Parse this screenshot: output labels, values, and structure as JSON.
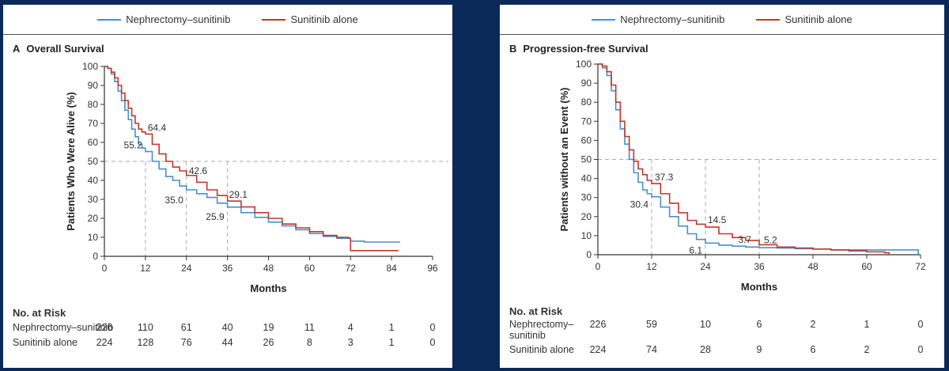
{
  "legend": [
    {
      "name": "Nephrectomy–sunitinib",
      "color": "#4a90c8"
    },
    {
      "name": "Sunitinib alone",
      "color": "#c0392b"
    }
  ],
  "chart_data": [
    {
      "type": "line",
      "letter": "A",
      "title": "Overall Survival",
      "xlabel": "Months",
      "ylabel": "Patients Who Were Alive (%)",
      "xlim": [
        0,
        96
      ],
      "ylim": [
        0,
        100
      ],
      "xticks": [
        "0",
        "12",
        "24",
        "36",
        "48",
        "60",
        "72",
        "84",
        "96"
      ],
      "yticks": [
        "0",
        "10",
        "20",
        "30",
        "40",
        "50",
        "60",
        "70",
        "80",
        "90",
        "100"
      ],
      "series": [
        {
          "name": "Nephrectomy–sunitinib",
          "color": "#4a90c8",
          "x": [
            0,
            1,
            2,
            3,
            4,
            5,
            6,
            7,
            8,
            9,
            10,
            11,
            12,
            14,
            16,
            18,
            20,
            22,
            24,
            27,
            30,
            33,
            36,
            40,
            44,
            48,
            52,
            56,
            60,
            64,
            68,
            72,
            76,
            80,
            84,
            86.5
          ],
          "y": [
            100,
            99,
            96,
            92,
            87,
            82,
            77,
            72,
            67,
            63,
            59,
            57,
            55.2,
            50,
            46,
            42,
            40,
            37,
            35,
            33,
            31,
            28,
            25.9,
            23,
            20.5,
            18,
            16,
            14,
            12,
            10.5,
            9.5,
            8,
            7.5,
            7.5,
            7.5,
            7.5
          ]
        },
        {
          "name": "Sunitinib alone",
          "color": "#c0392b",
          "x": [
            0,
            1,
            2,
            3,
            4,
            5,
            6,
            7,
            8,
            9,
            10,
            11,
            12,
            14,
            16,
            18,
            20,
            22,
            24,
            27,
            30,
            33,
            36,
            40,
            44,
            48,
            52,
            56,
            60,
            64,
            68,
            71.5,
            72,
            76,
            80,
            84,
            86
          ],
          "y": [
            100,
            99,
            97,
            94,
            90,
            86,
            82,
            78,
            74,
            70,
            67,
            65.5,
            64.4,
            59,
            54,
            50,
            47,
            45,
            42.6,
            39,
            35,
            32,
            29.1,
            26,
            23,
            20,
            17,
            15,
            13,
            11,
            10,
            9.5,
            3,
            3,
            3,
            3,
            3
          ]
        }
      ],
      "reference_line_y": 50,
      "guides_x": [
        12,
        24,
        36
      ],
      "annotations": [
        {
          "text": "64.4",
          "x": 12,
          "y": 64.4
        },
        {
          "text": "55.2",
          "x": 12,
          "y": 55.2
        },
        {
          "text": "42.6",
          "x": 24,
          "y": 42.6
        },
        {
          "text": "35.0",
          "x": 24,
          "y": 35.0
        },
        {
          "text": "29.1",
          "x": 36,
          "y": 29.1
        },
        {
          "text": "25.9",
          "x": 36,
          "y": 25.9
        }
      ],
      "at_risk": {
        "title": "No. at Risk",
        "rows": [
          {
            "label": "Nephrectomy–sunitinib",
            "values": [
              "226",
              "110",
              "61",
              "40",
              "19",
              "11",
              "4",
              "1",
              "0"
            ]
          },
          {
            "label": "Sunitinib alone",
            "values": [
              "224",
              "128",
              "76",
              "44",
              "26",
              "8",
              "3",
              "1",
              "0"
            ]
          }
        ]
      }
    },
    {
      "type": "line",
      "letter": "B",
      "title": "Progression-free Survival",
      "xlabel": "Months",
      "ylabel": "Patients without an Event (%)",
      "xlim": [
        0,
        72
      ],
      "ylim": [
        0,
        100
      ],
      "xticks": [
        "0",
        "12",
        "24",
        "36",
        "48",
        "60",
        "72"
      ],
      "yticks": [
        "0",
        "10",
        "20",
        "30",
        "40",
        "50",
        "60",
        "70",
        "80",
        "90",
        "100"
      ],
      "series": [
        {
          "name": "Nephrectomy–sunitinib",
          "color": "#4a90c8",
          "x": [
            0,
            1,
            2,
            3,
            4,
            5,
            6,
            7,
            8,
            9,
            10,
            11,
            12,
            14,
            16,
            18,
            20,
            22,
            24,
            27,
            30,
            33,
            36,
            40,
            44,
            48,
            52,
            56,
            60,
            64,
            68,
            71.5
          ],
          "y": [
            100,
            98,
            94,
            86,
            76,
            66,
            58,
            50,
            43,
            38,
            34,
            32,
            30.4,
            25,
            20,
            15,
            11,
            8,
            6.1,
            5,
            4.5,
            4,
            3.7,
            3.5,
            3.2,
            3,
            2.5,
            2.5,
            2.5,
            2.5,
            2.5,
            0
          ]
        },
        {
          "name": "Sunitinib alone",
          "color": "#c0392b",
          "x": [
            0,
            1,
            2,
            3,
            4,
            5,
            6,
            7,
            8,
            9,
            10,
            11,
            12,
            14,
            16,
            18,
            20,
            22,
            24,
            27,
            30,
            33,
            36,
            40,
            44,
            48,
            52,
            56,
            60,
            64,
            65
          ],
          "y": [
            100,
            99,
            96,
            89,
            80,
            70,
            62,
            55,
            49,
            45,
            42,
            39,
            37.3,
            32,
            27,
            22,
            18,
            16,
            14.5,
            11,
            9,
            7.5,
            5.2,
            4,
            3.5,
            3,
            2.5,
            2,
            1.5,
            1,
            0
          ]
        }
      ],
      "reference_line_y": 50,
      "guides_x": [
        12,
        24,
        36
      ],
      "annotations": [
        {
          "text": "37.3",
          "x": 12,
          "y": 37.3
        },
        {
          "text": "30.4",
          "x": 12,
          "y": 30.4
        },
        {
          "text": "14.5",
          "x": 24,
          "y": 14.5
        },
        {
          "text": "6.1",
          "x": 24,
          "y": 6.1
        },
        {
          "text": "3.7",
          "x": 36,
          "y": 3.7
        },
        {
          "text": "5.2",
          "x": 36,
          "y": 5.2
        }
      ],
      "at_risk": {
        "title": "No. at Risk",
        "rows": [
          {
            "label": "Nephrectomy–\nsunitinib",
            "values": [
              "226",
              "59",
              "10",
              "6",
              "2",
              "1",
              "0"
            ]
          },
          {
            "label": "Sunitinib alone",
            "values": [
              "224",
              "74",
              "28",
              "9",
              "6",
              "2",
              "0"
            ]
          }
        ]
      }
    }
  ]
}
